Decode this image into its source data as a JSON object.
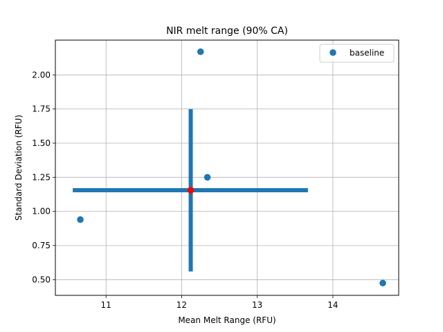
{
  "chart_data": {
    "type": "scatter",
    "title": "NIR melt range (90% CA)",
    "xlabel": "Mean Melt Range (RFU)",
    "ylabel": "Standard Deviation (RFU)",
    "xlim": [
      10.33,
      14.87
    ],
    "ylim": [
      0.385,
      2.255
    ],
    "xticks": [
      11,
      12,
      13,
      14
    ],
    "yticks": [
      0.5,
      0.75,
      1.0,
      1.25,
      1.5,
      1.75,
      2.0
    ],
    "ytick_labels": [
      "0.50",
      "0.75",
      "1.00",
      "1.25",
      "1.50",
      "1.75",
      "2.00"
    ],
    "grid": true,
    "legend_position": "top-right",
    "colors": {
      "series": "#1f77b4",
      "center": "#ff0000",
      "grid": "#b0b0b0"
    },
    "series": [
      {
        "name": "baseline",
        "points": [
          {
            "x": 12.25,
            "y": 2.17
          },
          {
            "x": 12.34,
            "y": 1.25
          },
          {
            "x": 10.66,
            "y": 0.94
          },
          {
            "x": 14.66,
            "y": 0.475
          }
        ]
      }
    ],
    "confidence_interval": {
      "center": {
        "x": 12.12,
        "y": 1.155
      },
      "x_range": [
        10.56,
        13.67
      ],
      "y_range": [
        0.56,
        1.75
      ]
    }
  }
}
